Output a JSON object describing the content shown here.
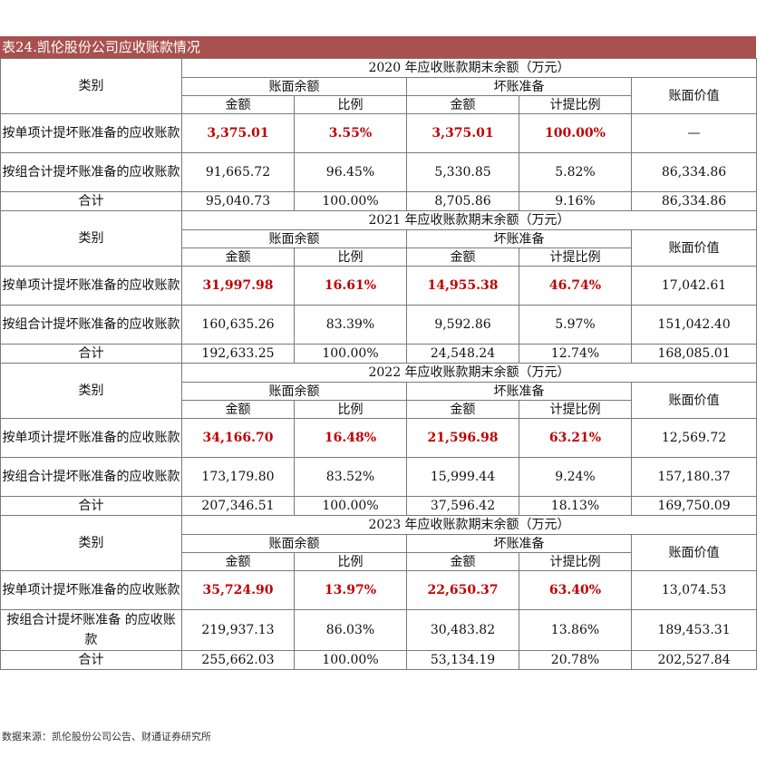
{
  "title": "表24.凯伦股份公司应收账款情况",
  "header_labels": {
    "category": "类别",
    "book_balance": "账面余额",
    "bad_debt": "坏账准备",
    "book_value": "账面价值",
    "amount": "金额",
    "ratio": "比例",
    "provision_ratio": "计提比例"
  },
  "blocks": [
    {
      "year_header": "2020 年应收账款期末余额（万元）",
      "rows": [
        {
          "label": "按单项计提坏账准备的应收账款",
          "amount": "3,375.01",
          "ratio": "3.55%",
          "bad_amount": "3,375.01",
          "bad_ratio": "100.00%",
          "book_value": "—"
        },
        {
          "label": "按组合计提坏账准备的应收账款",
          "amount": "91,665.72",
          "ratio": "96.45%",
          "bad_amount": "5,330.85",
          "bad_ratio": "5.82%",
          "book_value": "86,334.86"
        },
        {
          "label": "合计",
          "amount": "95,040.73",
          "ratio": "100.00%",
          "bad_amount": "8,705.86",
          "bad_ratio": "9.16%",
          "book_value": "86,334.86"
        }
      ]
    },
    {
      "year_header": "2021 年应收账款期末余额（万元）",
      "rows": [
        {
          "label": "按单项计提坏账准备的应收账款",
          "amount": "31,997.98",
          "ratio": "16.61%",
          "bad_amount": "14,955.38",
          "bad_ratio": "46.74%",
          "book_value": "17,042.61"
        },
        {
          "label": "按组合计提坏账准备的应收账款",
          "amount": "160,635.26",
          "ratio": "83.39%",
          "bad_amount": "9,592.86",
          "bad_ratio": "5.97%",
          "book_value": "151,042.40"
        },
        {
          "label": "合计",
          "amount": "192,633.25",
          "ratio": "100.00%",
          "bad_amount": "24,548.24",
          "bad_ratio": "12.74%",
          "book_value": "168,085.01"
        }
      ]
    },
    {
      "year_header": "2022 年应收账款期末余额（万元）",
      "rows": [
        {
          "label": "按单项计提坏账准备的应收账款",
          "amount": "34,166.70",
          "ratio": "16.48%",
          "bad_amount": "21,596.98",
          "bad_ratio": "63.21%",
          "book_value": "12,569.72"
        },
        {
          "label": "按组合计提坏账准备的应收账款",
          "amount": "173,179.80",
          "ratio": "83.52%",
          "bad_amount": "15,999.44",
          "bad_ratio": "9.24%",
          "book_value": "157,180.37"
        },
        {
          "label": "合计",
          "amount": "207,346.51",
          "ratio": "100.00%",
          "bad_amount": "37,596.42",
          "bad_ratio": "18.13%",
          "book_value": "169,750.09"
        }
      ]
    },
    {
      "year_header": "2023 年应收账款期末余额（万元）",
      "rows": [
        {
          "label": "按单项计提坏账准备的应收账款",
          "amount": "35,724.90",
          "ratio": "13.97%",
          "bad_amount": "22,650.37",
          "bad_ratio": "63.40%",
          "book_value": "13,074.53"
        },
        {
          "label": "按组合计提坏账准备 的应收账款",
          "amount": "219,937.13",
          "ratio": "86.03%",
          "bad_amount": "30,483.82",
          "bad_ratio": "13.86%",
          "book_value": "189,453.31"
        },
        {
          "label": "合计",
          "amount": "255,662.03",
          "ratio": "100.00%",
          "bad_amount": "53,134.19",
          "bad_ratio": "20.78%",
          "book_value": "202,527.84"
        }
      ]
    }
  ],
  "source": "数据来源：凯伦股份公司公告、财通证券研究所",
  "colors": {
    "title_bg": "#a8514f",
    "highlight": "#c00000"
  }
}
